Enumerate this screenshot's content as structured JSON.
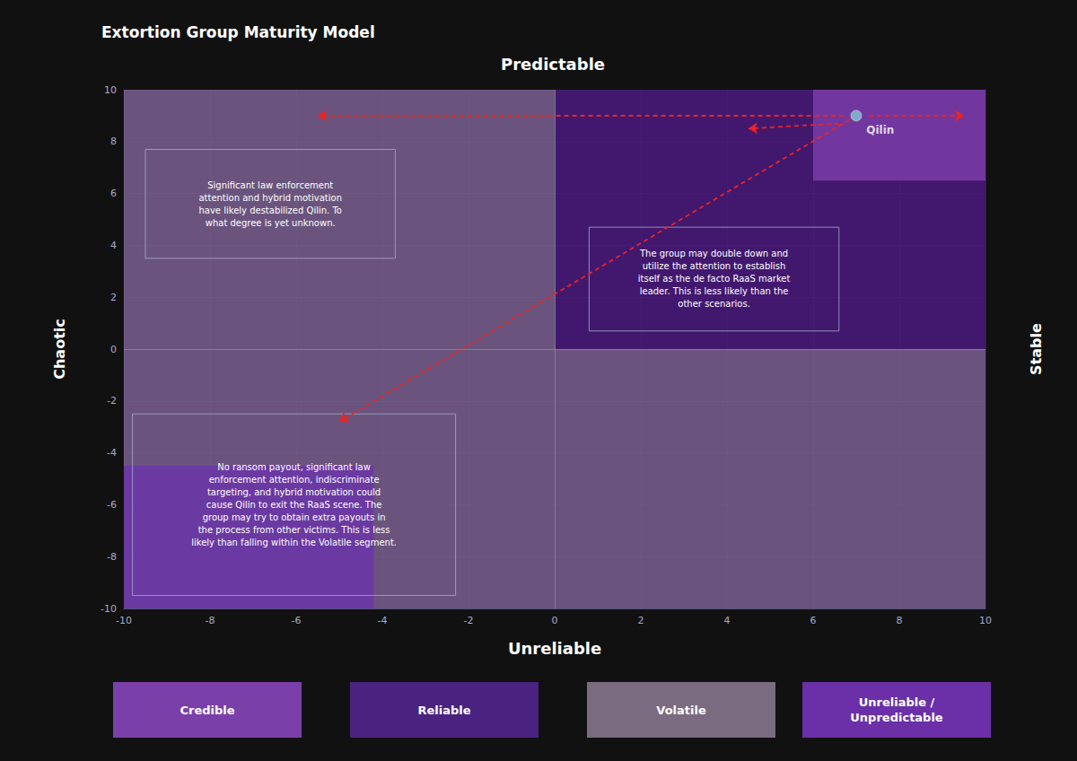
{
  "chart_data": {
    "type": "scatter",
    "title": "Extortion Group Maturity Model",
    "background": "#111111",
    "label_top": "Predictable",
    "label_bottom": "Unreliable",
    "label_left": "Chaotic",
    "label_right": "Stable",
    "xlim": [
      -10,
      10
    ],
    "ylim": [
      -10,
      10
    ],
    "xticks": [
      -10,
      -8,
      -6,
      -4,
      -2,
      0,
      2,
      4,
      6,
      8,
      10
    ],
    "yticks": [
      -10,
      -8,
      -6,
      -4,
      -2,
      0,
      2,
      4,
      6,
      8,
      10
    ],
    "grid": true,
    "hlines": [
      0
    ],
    "vlines": [
      0
    ],
    "regions": [
      {
        "x": -10,
        "y": 0,
        "w": 10,
        "h": 10,
        "color": "#7A6090"
      },
      {
        "x": 0,
        "y": 0,
        "w": 10,
        "h": 10,
        "color": "#4B1A80"
      },
      {
        "x": -10,
        "y": -10,
        "w": 10,
        "h": 10,
        "color": "#7A6090"
      },
      {
        "x": 0,
        "y": -10,
        "w": 10,
        "h": 10,
        "color": "#7A6090"
      },
      {
        "x": 6,
        "y": 6.5,
        "w": 4,
        "h": 3.5,
        "color": "#7A3DA8"
      },
      {
        "x": -10,
        "y": -10,
        "w": 5.8,
        "h": 5.5,
        "color": "#6B35A8"
      }
    ],
    "points": [
      {
        "label": "Qilin",
        "x": 7.0,
        "y": 9.0,
        "color": "#7EC8D8"
      }
    ],
    "arrows": {
      "color": "#EE2222",
      "lines": [
        [
          [
            7.3,
            9.0
          ],
          [
            9.5,
            9.0
          ]
        ],
        [
          [
            6.7,
            9.0
          ],
          [
            -5.5,
            9.0
          ]
        ],
        [
          [
            6.6,
            8.7
          ],
          [
            4.5,
            8.5
          ]
        ],
        [
          [
            7.0,
            9.0
          ],
          [
            -5.0,
            -2.8
          ]
        ]
      ]
    },
    "text_boxes": [
      {
        "x": -9.5,
        "y": 3.5,
        "w": 5.8,
        "h": 4.2,
        "text": "Significant law enforcement\nattention and hybrid motivation\nhave likely destabilized Qilin. To\nwhat degree is yet unknown."
      },
      {
        "x": 0.8,
        "y": 0.7,
        "w": 5.8,
        "h": 4.0,
        "text": "The group may double down and\nutilize the attention to establish\nitself as the de facto RaaS market\nleader. This is less likely than the\nother scenarios."
      },
      {
        "x": -9.8,
        "y": -9.5,
        "w": 7.5,
        "h": 7.0,
        "text": "No ransom payout, significant law\nenforcement attention, indiscriminate\ntargeting, and hybrid motivation could\ncause Qilin to exit the RaaS scene. The\ngroup may try to obtain extra payouts in\nthe process from other victims. This is less\nlikely than falling within the Volatile segment."
      }
    ],
    "legend_items": [
      {
        "label": "Credible",
        "color": "#7B3FAA"
      },
      {
        "label": "Reliable",
        "color": "#4A2280"
      },
      {
        "label": "Volatile",
        "color": "#7B6B80"
      },
      {
        "label": "Unreliable /\nUnpredictable",
        "color": "#6B2FA8"
      }
    ]
  }
}
